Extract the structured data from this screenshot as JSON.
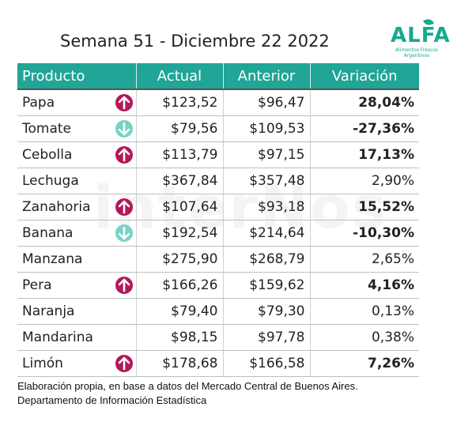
{
  "title": "Semana 51 - Diciembre 22 2022",
  "logo": {
    "word": "ALFA",
    "subtitle_line1": "Alimentos Frescos",
    "subtitle_line2": "Argentinos"
  },
  "watermark": "interNos",
  "table": {
    "headers": [
      "Producto",
      "Actual",
      "Anterior",
      "Variación"
    ],
    "rows": [
      {
        "product": "Papa",
        "actual": "$123,52",
        "anterior": "$96,47",
        "variation": "28,04%",
        "trend": "up",
        "trend_icon": "arrow-up-circle-icon",
        "bold": true
      },
      {
        "product": "Tomate",
        "actual": "$79,56",
        "anterior": "$109,53",
        "variation": "-27,36%",
        "trend": "down",
        "trend_icon": "arrow-down-circle-icon",
        "bold": true
      },
      {
        "product": "Cebolla",
        "actual": "$113,79",
        "anterior": "$97,15",
        "variation": "17,13%",
        "trend": "up",
        "trend_icon": "arrow-up-circle-icon",
        "bold": true
      },
      {
        "product": "Lechuga",
        "actual": "$367,84",
        "anterior": "$357,48",
        "variation": "2,90%",
        "trend": "none",
        "bold": false
      },
      {
        "product": "Zanahoria",
        "actual": "$107,64",
        "anterior": "$93,18",
        "variation": "15,52%",
        "trend": "up",
        "trend_icon": "arrow-up-circle-icon",
        "bold": true
      },
      {
        "product": "Banana",
        "actual": "$192,54",
        "anterior": "$214,64",
        "variation": "-10,30%",
        "trend": "down",
        "trend_icon": "arrow-down-circle-icon",
        "bold": true
      },
      {
        "product": "Manzana",
        "actual": "$275,90",
        "anterior": "$268,79",
        "variation": "2,65%",
        "trend": "none",
        "bold": false
      },
      {
        "product": "Pera",
        "actual": "$166,26",
        "anterior": "$159,62",
        "variation": "4,16%",
        "trend": "up",
        "trend_icon": "arrow-up-circle-icon",
        "bold": true
      },
      {
        "product": "Naranja",
        "actual": "$79,40",
        "anterior": "$79,30",
        "variation": "0,13%",
        "trend": "none",
        "bold": false
      },
      {
        "product": "Mandarina",
        "actual": "$98,15",
        "anterior": "$97,78",
        "variation": "0,38%",
        "trend": "none",
        "bold": false
      },
      {
        "product": "Limón",
        "actual": "$178,68",
        "anterior": "$166,58",
        "variation": "7,26%",
        "trend": "up",
        "trend_icon": "arrow-up-circle-icon",
        "bold": true
      }
    ]
  },
  "footnote": "Elaboración propia, en base a datos del Mercado Central de Buenos Aires. Departamento de Información Estadística",
  "colors": {
    "header_bg": "#20a596",
    "arrow_up": "#b3185a",
    "arrow_down": "#76d3c6",
    "logo": "#16a98f"
  }
}
